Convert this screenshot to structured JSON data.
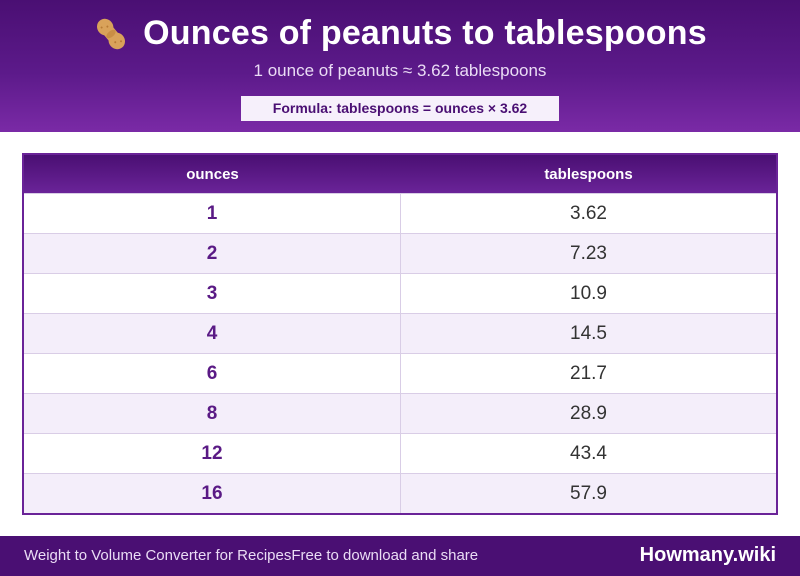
{
  "header": {
    "title": "Ounces of peanuts to tablespoons",
    "subtitle": "1 ounce of peanuts ≈ 3.62 tablespoons",
    "formula": "Formula: tablespoons = ounces × 3.62",
    "icon": "peanut-icon"
  },
  "table": {
    "columns": [
      "ounces",
      "tablespoons"
    ],
    "rows": [
      {
        "ounces": "1",
        "tablespoons": "3.62"
      },
      {
        "ounces": "2",
        "tablespoons": "7.23"
      },
      {
        "ounces": "3",
        "tablespoons": "10.9"
      },
      {
        "ounces": "4",
        "tablespoons": "14.5"
      },
      {
        "ounces": "6",
        "tablespoons": "21.7"
      },
      {
        "ounces": "8",
        "tablespoons": "28.9"
      },
      {
        "ounces": "12",
        "tablespoons": "43.4"
      },
      {
        "ounces": "16",
        "tablespoons": "57.9"
      }
    ]
  },
  "footer": {
    "left_text": "Weight to Volume Converter for RecipesFree to download and share",
    "brand": "Howmany.wiki"
  },
  "colors": {
    "brand_purple": "#4a0f73",
    "accent_purple": "#6a2398",
    "row_alt": "#f4eefa"
  }
}
